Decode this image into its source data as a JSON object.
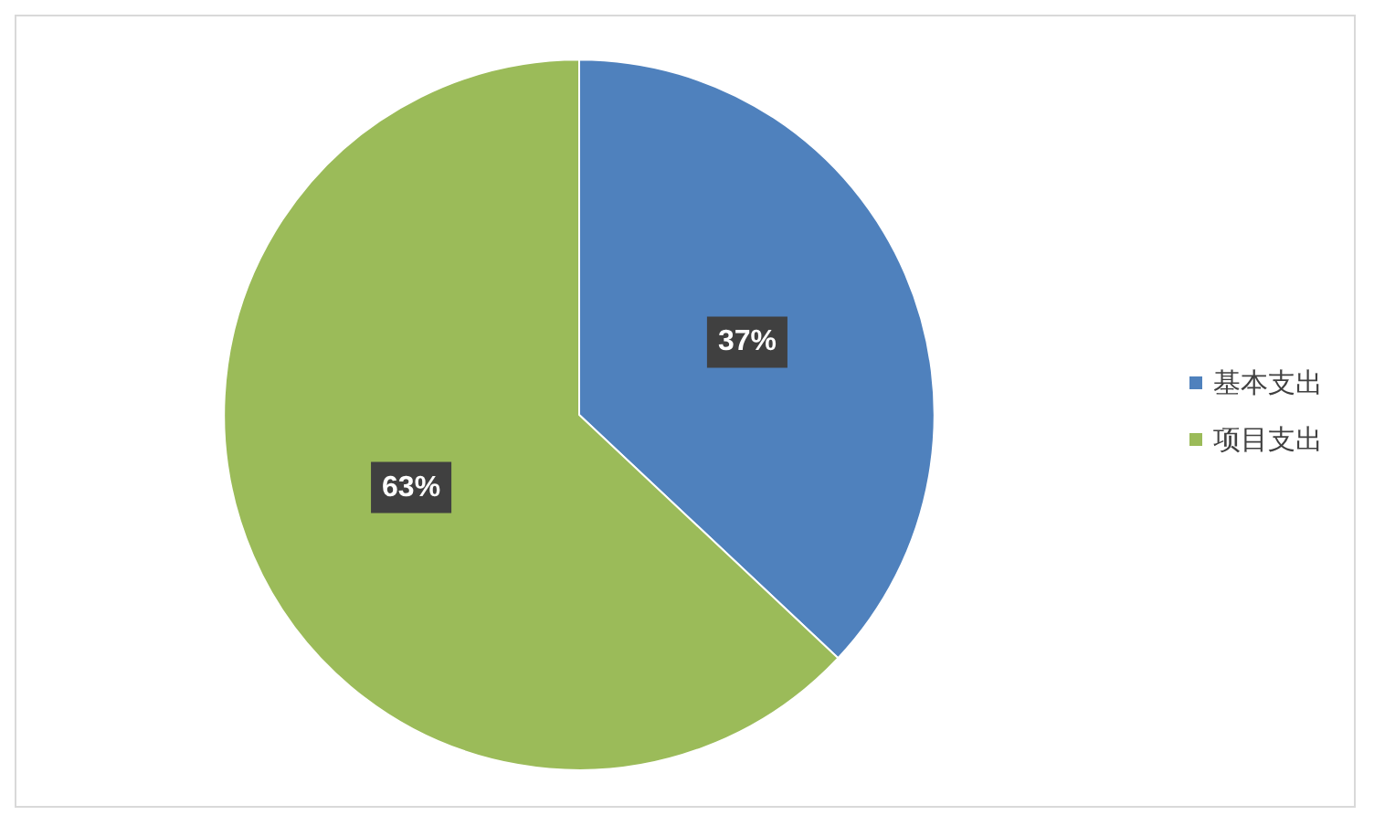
{
  "chart_data": {
    "type": "pie",
    "categories": [
      "基本支出",
      "项目支出"
    ],
    "values": [
      37,
      63
    ],
    "colors": [
      "#4f81bd",
      "#9bbb59"
    ],
    "value_labels": [
      "37%",
      "63%"
    ],
    "legend": "right"
  }
}
